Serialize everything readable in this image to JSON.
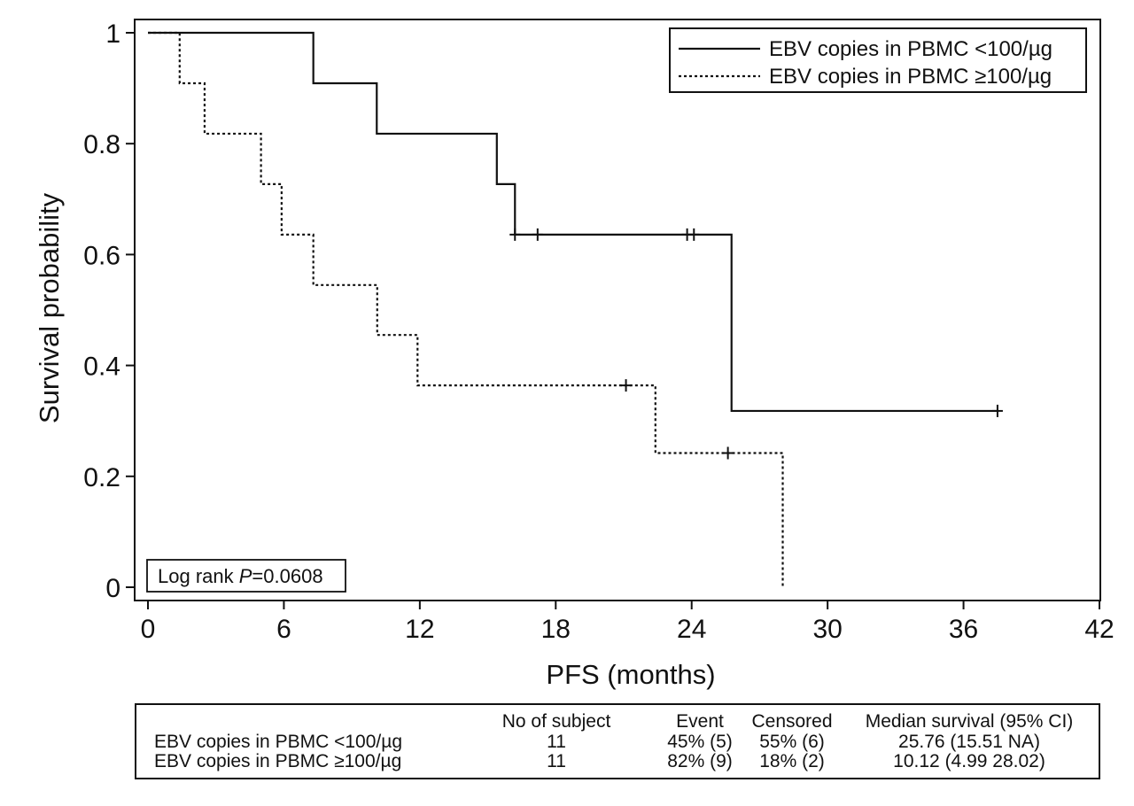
{
  "chart_data": {
    "type": "line",
    "subtype": "kaplan-meier step",
    "xlabel": "PFS (months)",
    "ylabel": "Survival probability",
    "xlim": [
      0,
      42
    ],
    "ylim": [
      0,
      1
    ],
    "xticks": [
      "0",
      "6",
      "12",
      "18",
      "24",
      "30",
      "36",
      "42"
    ],
    "yticks": [
      "0",
      "0.2",
      "0.4",
      "0.6",
      "0.8",
      "1"
    ],
    "grid": false,
    "legend_position": "top-right",
    "annotation": {
      "prefix": "Log rank ",
      "italic": "P",
      "suffix": "=0.0608"
    },
    "series": [
      {
        "name": "EBV copies in PBMC <100/µg",
        "style": "solid",
        "color": "#111111",
        "steps": [
          [
            0,
            1.0
          ],
          [
            7.3,
            0.909
          ],
          [
            10.1,
            0.818
          ],
          [
            15.4,
            0.727
          ],
          [
            16.2,
            0.636
          ],
          [
            25.76,
            0.318
          ]
        ],
        "end_x": 37.5,
        "censored": [
          [
            16.2,
            0.636
          ],
          [
            17.2,
            0.636
          ],
          [
            23.8,
            0.636
          ],
          [
            24.1,
            0.636
          ],
          [
            37.5,
            0.318
          ]
        ]
      },
      {
        "name": "EBV copies in PBMC ≥100/µg",
        "style": "dotted",
        "color": "#111111",
        "steps": [
          [
            0,
            1.0
          ],
          [
            1.4,
            0.909
          ],
          [
            2.5,
            0.818
          ],
          [
            4.99,
            0.727
          ],
          [
            5.9,
            0.636
          ],
          [
            7.3,
            0.545
          ],
          [
            10.12,
            0.455
          ],
          [
            11.9,
            0.364
          ],
          [
            22.4,
            0.242
          ],
          [
            28.02,
            0.0
          ]
        ],
        "end_x": 28.02,
        "censored": [
          [
            21.1,
            0.364
          ],
          [
            25.6,
            0.242
          ]
        ]
      }
    ]
  },
  "table": {
    "headers": [
      "No of subject",
      "Event",
      "Censored",
      "Median survival (95% CI)"
    ],
    "rows": [
      {
        "label": "EBV copies in PBMC <100/µg",
        "subjects": "11",
        "event": "45% (5)",
        "censored": "55% (6)",
        "median": "25.76 (15.51   NA)"
      },
      {
        "label": "EBV copies in PBMC ≥100/µg",
        "subjects": "11",
        "event": "82% (9)",
        "censored": "18% (2)",
        "median": "10.12 (4.99   28.02)"
      }
    ]
  }
}
